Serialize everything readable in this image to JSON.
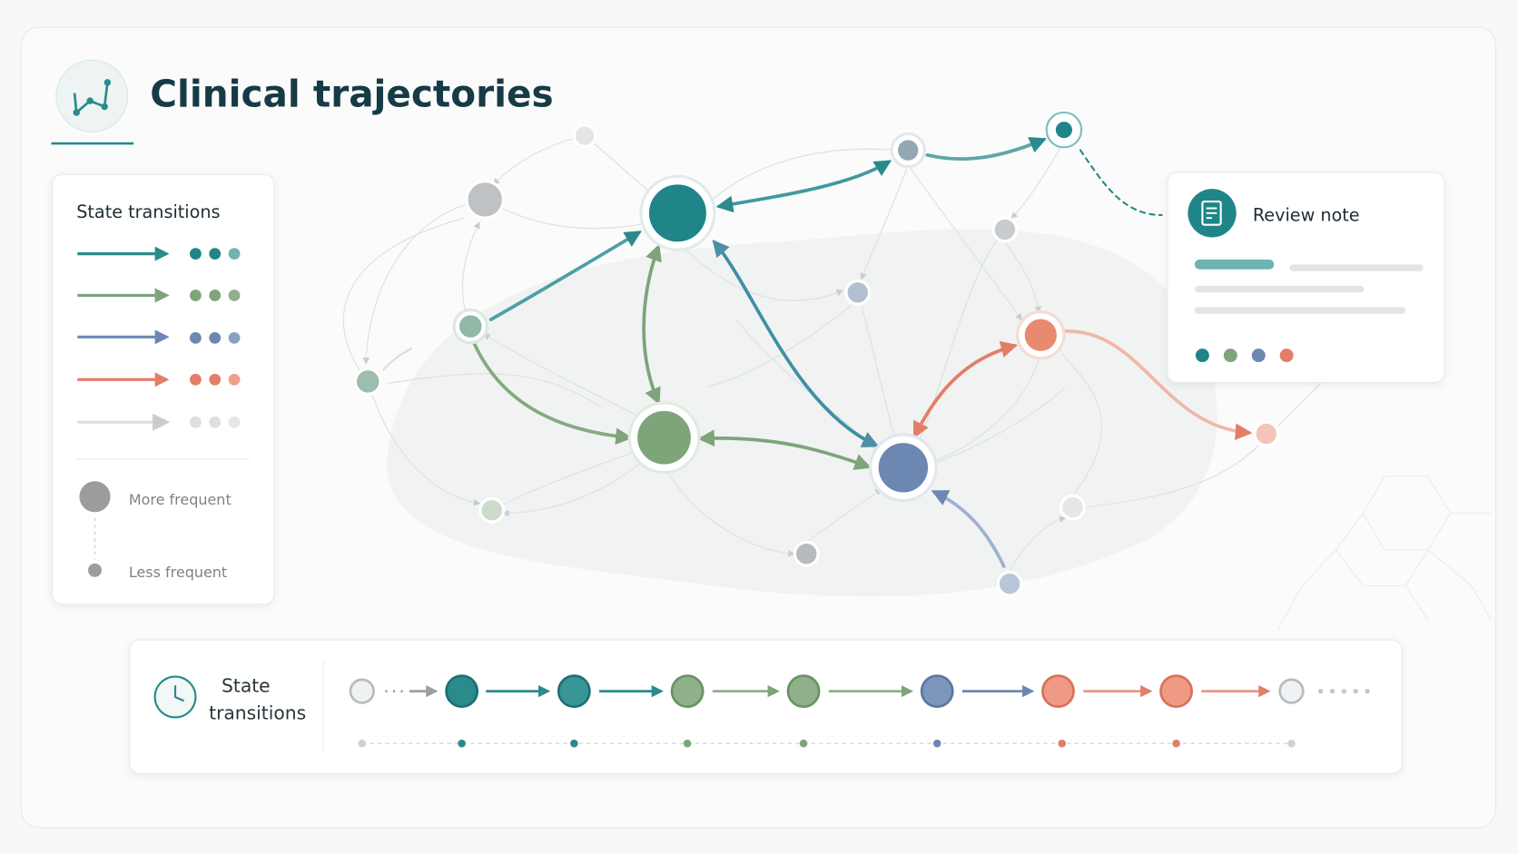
{
  "header": {
    "title": "Clinical trajectories"
  },
  "legend": {
    "title": "State transitions",
    "size_labels": [
      "More frequent",
      "Less frequent"
    ]
  },
  "review": {
    "title": "Review note"
  },
  "timeline": {
    "title_lines": [
      "State",
      "transitions"
    ]
  }
}
